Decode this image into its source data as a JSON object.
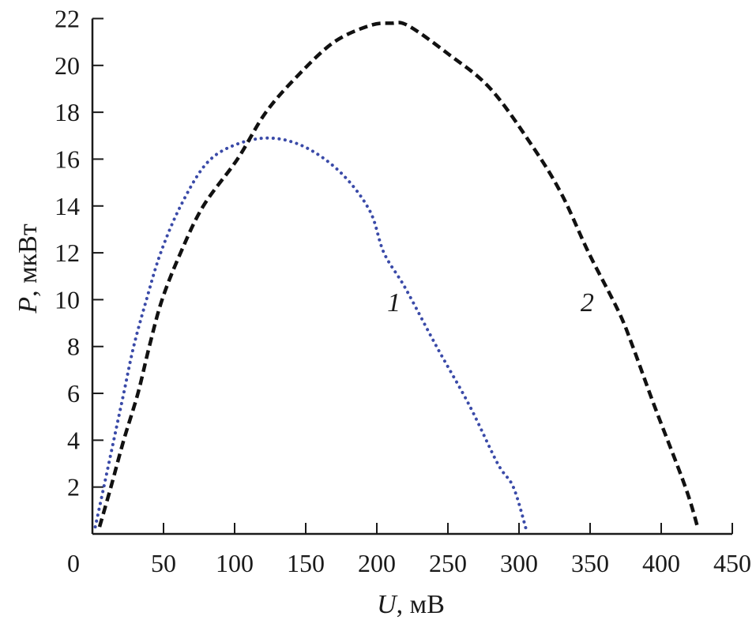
{
  "chart_data": {
    "type": "line",
    "title": "",
    "xlabel_var": "U",
    "xlabel_unit": ", мВ",
    "ylabel_var": "P",
    "ylabel_unit": ", мкВт",
    "xlim": [
      0,
      450
    ],
    "ylim": [
      0,
      22
    ],
    "x_ticks": [
      0,
      50,
      100,
      150,
      200,
      250,
      300,
      350,
      400,
      450
    ],
    "y_ticks": [
      2,
      4,
      6,
      8,
      10,
      12,
      14,
      16,
      18,
      20,
      22
    ],
    "grid": false,
    "series": [
      {
        "name": "1",
        "color": "#3a4aa8",
        "style": "dotted",
        "label_at": [
          212,
          9.5
        ],
        "x": [
          2,
          8,
          15,
          22,
          29,
          38,
          48,
          62,
          80,
          100,
          125,
          150,
          175,
          195,
          205,
          220,
          242,
          265,
          285,
          296,
          305
        ],
        "y": [
          0.3,
          2,
          4,
          6,
          8,
          10,
          12,
          14,
          15.8,
          16.6,
          16.9,
          16.5,
          15.4,
          13.8,
          12,
          10.5,
          8,
          5.5,
          3,
          2,
          0.2
        ]
      },
      {
        "name": "2",
        "color": "#111111",
        "style": "dashed",
        "label_at": [
          348,
          9.5
        ],
        "x": [
          5,
          13,
          22,
          32,
          40,
          49,
          62,
          78,
          102,
          122,
          145,
          170,
          195,
          210,
          222,
          250,
          280,
          310,
          330,
          349,
          370,
          380,
          395,
          417,
          426
        ],
        "y": [
          0.3,
          2,
          4,
          6,
          8,
          10,
          12,
          14,
          16,
          18,
          19.6,
          21,
          21.7,
          21.8,
          21.7,
          20.5,
          19,
          16.5,
          14.5,
          12,
          9.5,
          8,
          5.5,
          2,
          0.2
        ]
      }
    ]
  }
}
